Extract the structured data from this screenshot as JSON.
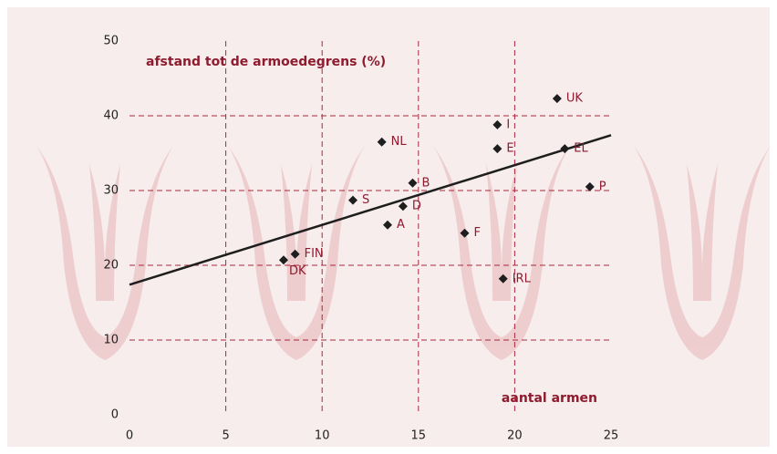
{
  "chart_data": {
    "type": "scatter",
    "y_label": "afstand tot de armoedegrens (%)",
    "x_label": "aantal armen",
    "series": [
      {
        "color": "#1e1e1e",
        "label_color": "#8e1b2e",
        "labels": [
          "UK",
          "I",
          "NL",
          "E",
          "EL",
          "B",
          "P",
          "S",
          "D",
          "A",
          "F",
          "FIN",
          "DK",
          "IRL"
        ],
        "x": [
          22.2,
          19.1,
          13.1,
          19.1,
          22.6,
          14.7,
          23.9,
          11.6,
          14.2,
          13.4,
          17.4,
          8.6,
          8.0,
          19.4
        ],
        "values": [
          42.3,
          38.8,
          36.5,
          35.6,
          35.6,
          31.0,
          30.5,
          28.7,
          27.9,
          25.4,
          24.3,
          21.5,
          20.7,
          18.2
        ]
      }
    ],
    "trend_line": {
      "color": "#1e1e1e",
      "x": [
        0,
        25
      ],
      "y": [
        17.4,
        37.4
      ]
    },
    "xlim": [
      0,
      25
    ],
    "xticks": [
      0,
      5,
      10,
      15,
      20,
      25
    ],
    "ylim": [
      0,
      50
    ],
    "yticks": [
      0,
      10,
      20,
      30,
      40,
      50
    ],
    "grid": true,
    "grid_color": "#a8283c"
  }
}
